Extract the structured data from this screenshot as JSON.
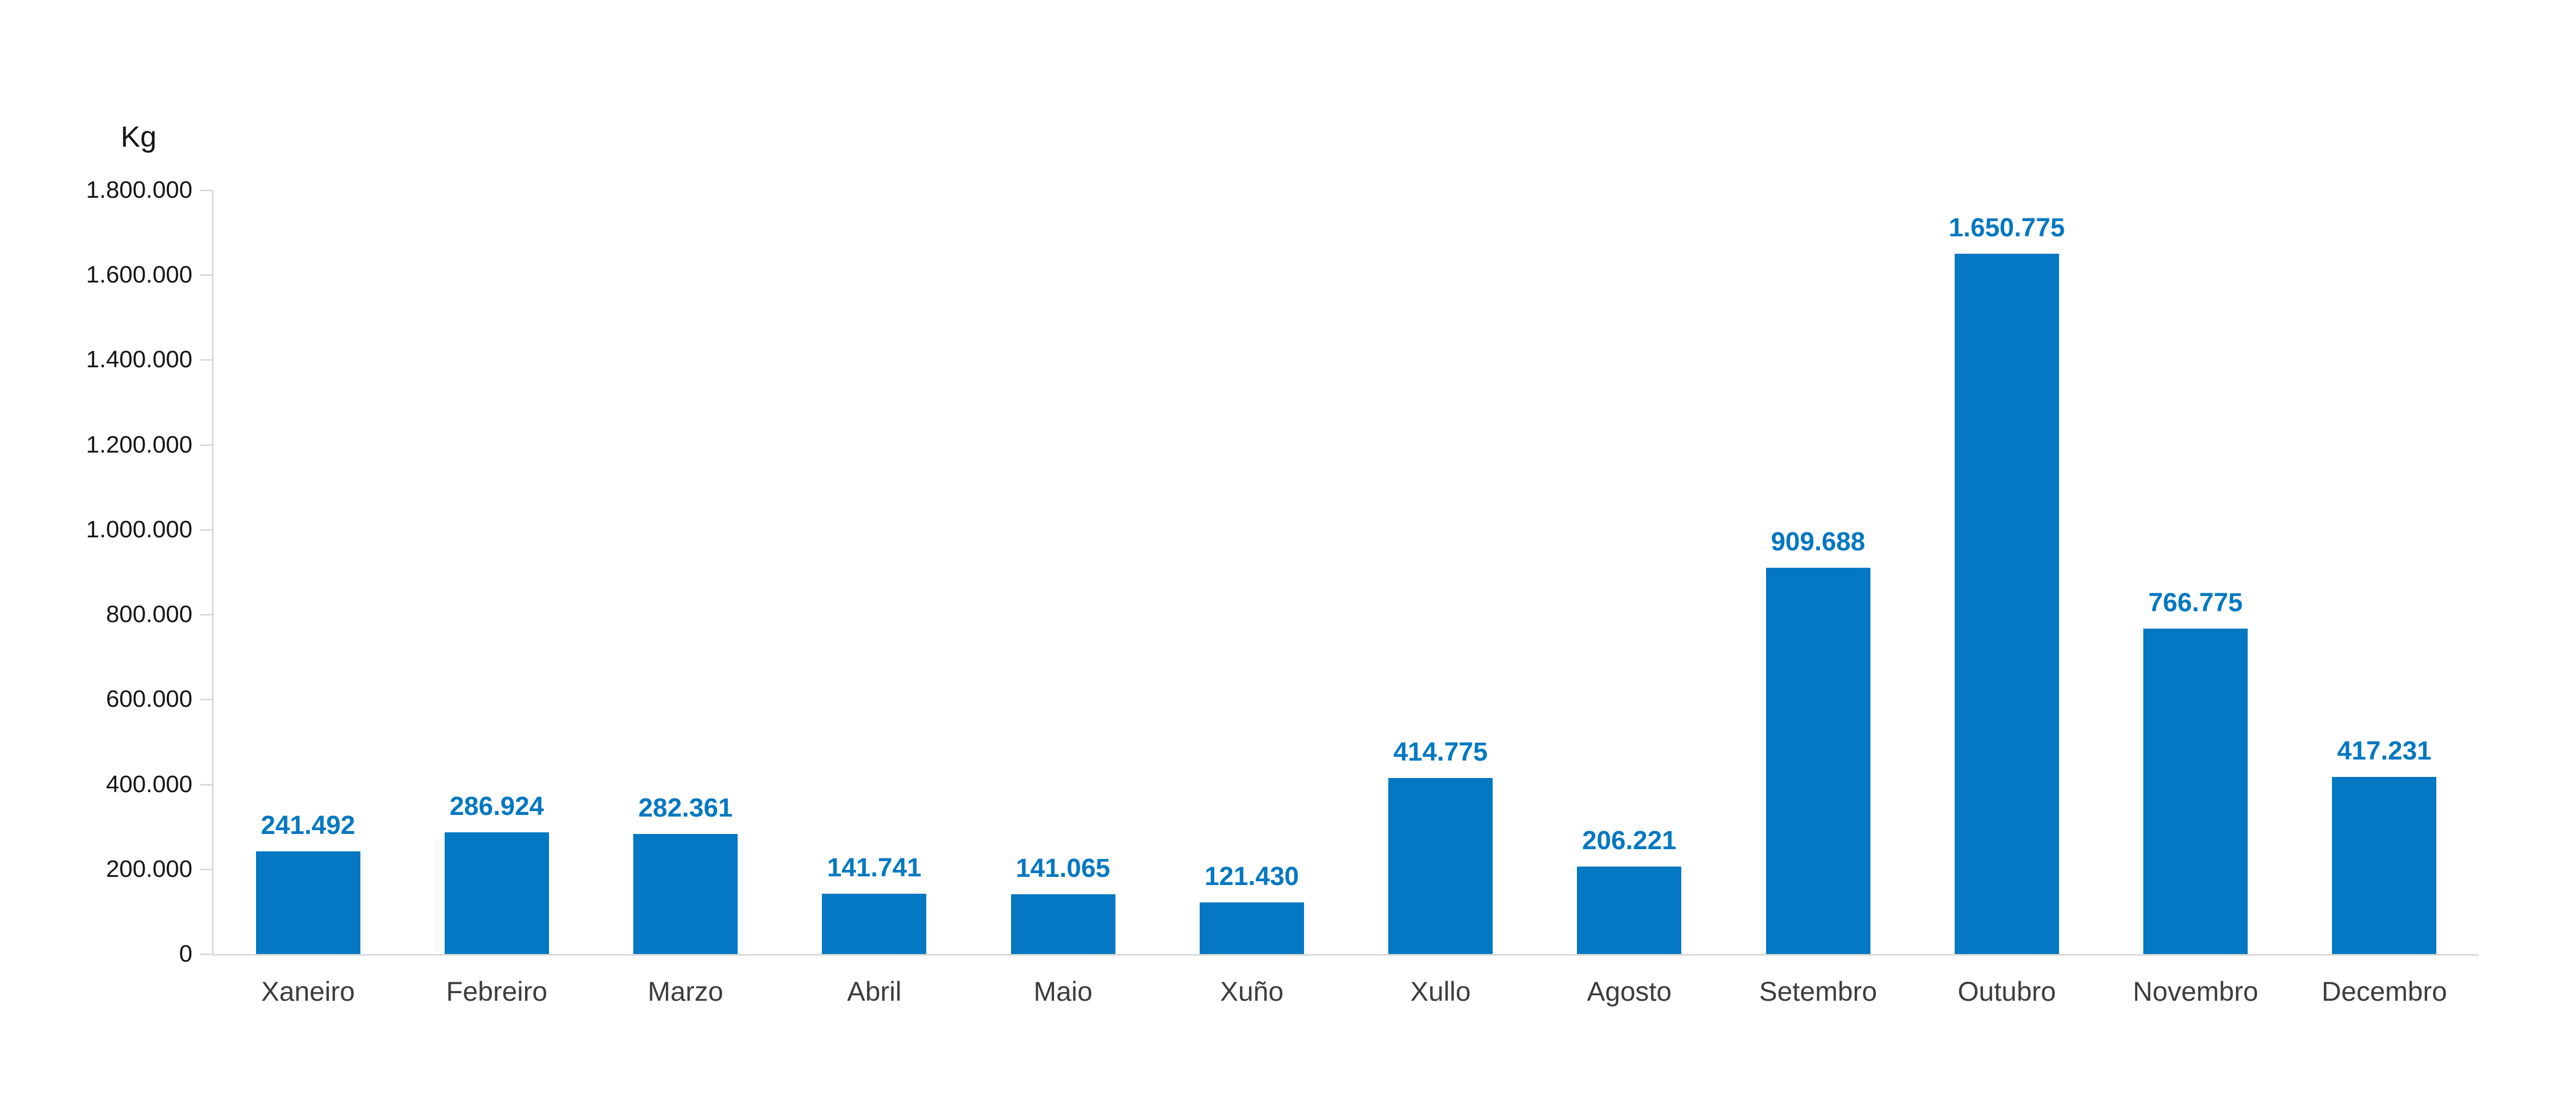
{
  "page": {
    "background": "#ffffff"
  },
  "chart_data": {
    "type": "bar",
    "title": "",
    "xlabel": "",
    "ylabel": "Kg",
    "categories": [
      "Xaneiro",
      "Febreiro",
      "Marzo",
      "Abril",
      "Maio",
      "Xuño",
      "Xullo",
      "Agosto",
      "Setembro",
      "Outubro",
      "Novembro",
      "Decembro"
    ],
    "values": [
      241492,
      286924,
      282361,
      141741,
      141065,
      121430,
      414775,
      206221,
      909688,
      1650775,
      766775,
      417231
    ],
    "value_labels": [
      "241.492",
      "286.924",
      "282.361",
      "141.741",
      "141.065",
      "121.430",
      "414.775",
      "206.221",
      "909.688",
      "1.650.775",
      "766.775",
      "417.231"
    ],
    "ylim": [
      0,
      1800000
    ],
    "y_tick_labels": [
      "0",
      "200.000",
      "400.000",
      "600.000",
      "800.000",
      "1.000.000",
      "1.200.000",
      "1.400.000",
      "1.600.000",
      "1.800.000"
    ],
    "grid": "off",
    "legend": "none",
    "colors": {
      "bar": "#0478c2",
      "value_label": "#0478c2",
      "axis": "#d9d9d9",
      "tick_label": "#151515",
      "category_label": "#3d3d3d"
    }
  }
}
